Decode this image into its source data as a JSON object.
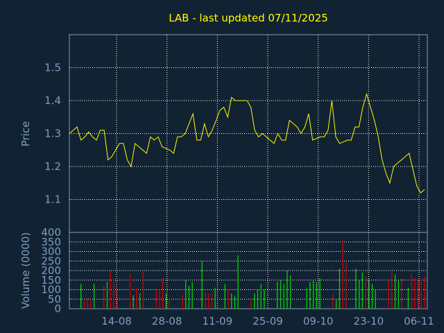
{
  "chart_data": [
    {
      "type": "line",
      "title": "LAB - last updated 07/11/2025",
      "ylabel": "Price",
      "ylim": [
        1.0,
        1.6
      ],
      "yticks": [
        "1.1",
        "1.2",
        "1.3",
        "1.4",
        "1.5"
      ],
      "grid": true,
      "colors": {
        "line": "#ffff00",
        "title": "#ffff00",
        "axis": "#7f9fbf",
        "grid": "#ffffff",
        "background": "#112233"
      },
      "series": [
        {
          "values": [
            1.3,
            1.31,
            1.32,
            1.28,
            1.29,
            1.305,
            1.29,
            1.28,
            1.31,
            1.31,
            1.22,
            1.23,
            1.25,
            1.27,
            1.27,
            1.22,
            1.2,
            1.27,
            1.26,
            1.25,
            1.24,
            1.29,
            1.28,
            1.29,
            1.26,
            1.255,
            1.25,
            1.24,
            1.29,
            1.29,
            1.3,
            1.33,
            1.36,
            1.28,
            1.28,
            1.33,
            1.29,
            1.31,
            1.34,
            1.37,
            1.38,
            1.35,
            1.41,
            1.4,
            1.4,
            1.4,
            1.4,
            1.38,
            1.31,
            1.29,
            1.3,
            1.29,
            1.28,
            1.27,
            1.3,
            1.28,
            1.28,
            1.34,
            1.33,
            1.32,
            1.3,
            1.32,
            1.36,
            1.28,
            1.285,
            1.29,
            1.29,
            1.31,
            1.4,
            1.29,
            1.27,
            1.275,
            1.28,
            1.28,
            1.32,
            1.32,
            1.38,
            1.42,
            1.38,
            1.34,
            1.29,
            1.22,
            1.18,
            1.15,
            1.2,
            1.21,
            1.22,
            1.23,
            1.24,
            1.19,
            1.14,
            1.12,
            1.13
          ]
        }
      ]
    },
    {
      "type": "bar",
      "ylabel": "Volume (0000)",
      "ylim": [
        0,
        400
      ],
      "yticks": [
        "0",
        "50",
        "100",
        "150",
        "200",
        "250",
        "300",
        "350",
        "400"
      ],
      "x_tick_labels": [
        "14-08",
        "28-08",
        "11-09",
        "25-09",
        "09-10",
        "23-10",
        "06-11"
      ],
      "colors": {
        "up": "#00cc00",
        "down": "#cc0000"
      },
      "series": [
        {
          "values": [
            0,
            130,
            50,
            55,
            50,
            130,
            0,
            0,
            120,
            140,
            200,
            160,
            100,
            0,
            0,
            0,
            180,
            70,
            110,
            80,
            200,
            0,
            0,
            0,
            100,
            100,
            160,
            80,
            50,
            0,
            0,
            0,
            70,
            150,
            120,
            140,
            0,
            0,
            250,
            90,
            80,
            80,
            110,
            0,
            0,
            130,
            100,
            80,
            70,
            280,
            0,
            0,
            0,
            50,
            80,
            100,
            130,
            100,
            0,
            0,
            0,
            140,
            150,
            130,
            200,
            175,
            0,
            0,
            0,
            0,
            110,
            140,
            150,
            140,
            160,
            0,
            0,
            0,
            80,
            50,
            210,
            360,
            240,
            0,
            0,
            210,
            150,
            190,
            170,
            155,
            130,
            100,
            0,
            0,
            0,
            150,
            190,
            180,
            150,
            160,
            0,
            110,
            180,
            160,
            150,
            160,
            170
          ],
          "directions": "xuddduxxdudddxxxdududxxxdddud xxxduuuxxuddduddudxxxuddduxxxuuuuuxxxxdduuuxxxduudxxdddduuuduuuxxxdduuduxdddddd"
        }
      ]
    }
  ]
}
